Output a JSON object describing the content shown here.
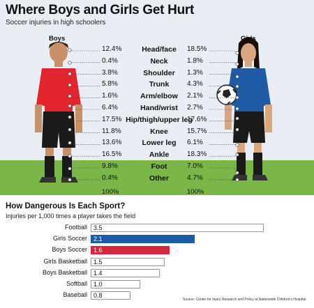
{
  "title": "Where Boys and Girls Get Hurt",
  "subtitle": "Soccer injuries in high schoolers",
  "boys_label": "Boys",
  "girls_label": "Girls",
  "totals": {
    "boys": "100%",
    "girls": "100%"
  },
  "bar_section": {
    "title": "How Dangerous Is Each Sport?",
    "subtitle": "Injuries per 1,000 times a player takes the field"
  },
  "source": "Source: Center for Injury Research and Policy at Nationwide Children's Hospital",
  "colors": {
    "sky": "#e8eef3",
    "grass": "#7ab648",
    "girls_soccer": "#1f5aa6",
    "boys_soccer": "#d7263d",
    "default_bar": "#ffffff",
    "boy_jersey": "#e3262e",
    "girl_jersey": "#1f5aa6"
  },
  "chart_data": [
    {
      "type": "table",
      "columns": [
        "Boys",
        "",
        "Girls"
      ],
      "categories": [
        "Head/face",
        "Neck",
        "Shoulder",
        "Trunk",
        "Arm/elbow",
        "Hand/wrist",
        "Hip/thigh/upper leg",
        "Knee",
        "Lower leg",
        "Ankle",
        "Foot",
        "Other"
      ],
      "series": [
        {
          "name": "Boys",
          "values": [
            12.4,
            0.4,
            3.8,
            5.8,
            1.6,
            6.4,
            17.5,
            11.8,
            13.6,
            16.5,
            9.8,
            0.4
          ],
          "labels": [
            "12.4%",
            "0.4%",
            "3.8%",
            "5.8%",
            "1.6%",
            "6.4%",
            "17.5%",
            "11.8%",
            "13.6%",
            "16.5%",
            "9.8%",
            "0.4%"
          ]
        },
        {
          "name": "Girls",
          "values": [
            18.5,
            1.8,
            1.3,
            4.3,
            2.1,
            2.7,
            17.6,
            15.7,
            6.1,
            18.3,
            7.0,
            4.7
          ],
          "labels": [
            "18.5%",
            "1.8%",
            "1.3%",
            "4.3%",
            "2.1%",
            "2.7%",
            "17.6%",
            "15.7%",
            "6.1%",
            "18.3%",
            "7.0%",
            "4.7%"
          ]
        }
      ]
    },
    {
      "type": "bar",
      "orientation": "horizontal",
      "categories": [
        "Football",
        "Girls Soccer",
        "Boys Soccer",
        "Girls Basketball",
        "Boys Basketball",
        "Softball",
        "Baseball"
      ],
      "values": [
        3.5,
        2.1,
        1.6,
        1.5,
        1.4,
        1.0,
        0.8
      ],
      "value_labels": [
        "3.5",
        "2.1",
        "1.6",
        "1.5",
        "1.4",
        "1.0",
        "0.8"
      ],
      "highlight": {
        "Girls Soccer": "#1f5aa6",
        "Boys Soccer": "#d7263d"
      },
      "xlim": [
        0,
        3.5
      ]
    }
  ]
}
